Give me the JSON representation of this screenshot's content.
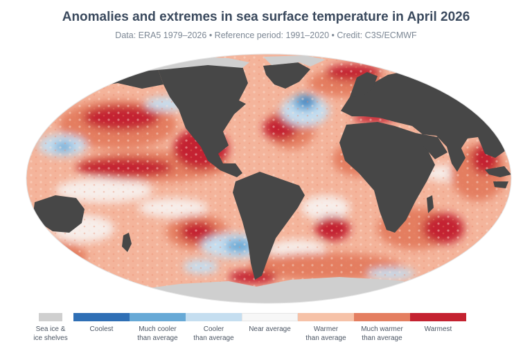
{
  "title": "Anomalies and extremes in sea surface temperature in April 2026",
  "subtitle": "Data: ERA5 1979–2026 • Reference period: 1991–2020 • Credit: C3S/ECMWF",
  "legend": {
    "ice": {
      "label": "Sea ice &\nice shelves",
      "color": "#cfcfcf"
    },
    "scale": [
      {
        "label": "Coolest",
        "color": "#2f6fb5"
      },
      {
        "label": "Much cooler\nthan average",
        "color": "#67a9d6"
      },
      {
        "label": "Cooler\nthan average",
        "color": "#c5def0"
      },
      {
        "label": "Near average",
        "color": "#f7f7f7"
      },
      {
        "label": "Warmer\nthan average",
        "color": "#f6c2a8"
      },
      {
        "label": "Much warmer\nthan average",
        "color": "#e47e60"
      },
      {
        "label": "Warmest",
        "color": "#c42230"
      }
    ]
  },
  "map_colors": {
    "land": "#474747",
    "ocean_base": "#f4b49b",
    "sea_ice": "#cfcfcf"
  }
}
